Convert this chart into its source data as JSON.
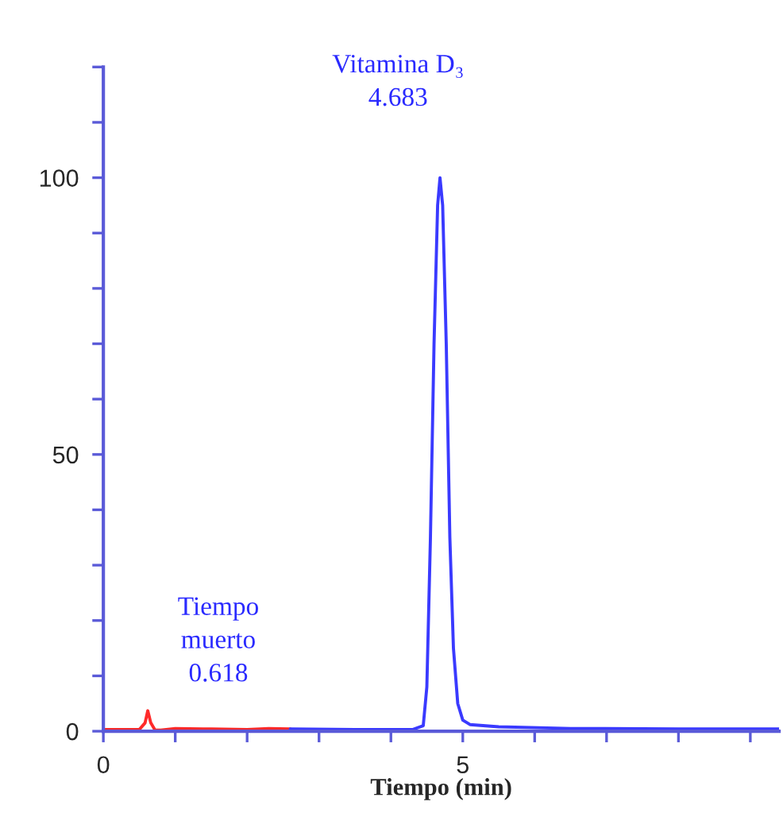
{
  "chart_data": {
    "type": "line",
    "xlabel": "Tiempo (min)",
    "series": [
      {
        "color": "#ff2a2a",
        "x": [
          0,
          0.5,
          0.58,
          0.618,
          0.66,
          0.72,
          0.8,
          1.0,
          1.5,
          2.0,
          2.3,
          2.6
        ],
        "values": [
          0.3,
          0.3,
          1.5,
          3.7,
          1.5,
          0.2,
          0.2,
          0.5,
          0.4,
          0.3,
          0.5,
          0.4
        ]
      },
      {
        "color": "#3a3aff",
        "x": [
          2.6,
          3.5,
          4.3,
          4.45,
          4.5,
          4.55,
          4.6,
          4.65,
          4.683,
          4.72,
          4.77,
          4.82,
          4.87,
          4.93,
          5.0,
          5.1,
          5.5,
          6.5,
          8,
          9.4
        ],
        "values": [
          0.4,
          0.3,
          0.3,
          1,
          8,
          35,
          70,
          95,
          100,
          95,
          70,
          35,
          15,
          5,
          2,
          1.2,
          0.8,
          0.5,
          0.4,
          0.4
        ]
      }
    ],
    "annotations": [
      "Tiempo\nmuerto\n0.618",
      "Vitamina D₃\n4.683"
    ],
    "xlim": [
      0,
      9.4
    ],
    "xticks": [
      0,
      {
        "value": 1,
        "label": null
      },
      {
        "value": 2,
        "label": null
      },
      {
        "value": 3,
        "label": null
      },
      {
        "value": 4,
        "label": null
      },
      5,
      {
        "value": 6,
        "label": null
      },
      {
        "value": 7,
        "label": null
      },
      {
        "value": 8,
        "label": null
      },
      {
        "value": 9,
        "label": null
      }
    ],
    "ylim": [
      0,
      120
    ],
    "yticks": [
      0,
      {
        "value": 10,
        "label": null
      },
      {
        "value": 20,
        "label": null
      },
      {
        "value": 30,
        "label": null
      },
      {
        "value": 40,
        "label": null
      },
      50,
      {
        "value": 60,
        "label": null
      },
      {
        "value": 70,
        "label": null
      },
      {
        "value": 80,
        "label": null
      },
      {
        "value": 90,
        "label": null
      },
      100,
      {
        "value": 110,
        "label": null
      },
      {
        "value": 120,
        "label": null
      }
    ],
    "grid": false,
    "marker": "none",
    "line_style": "solid"
  }
}
